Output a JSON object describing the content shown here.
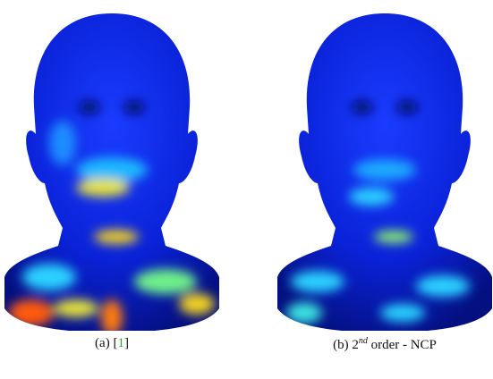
{
  "figure": {
    "panels": [
      {
        "caption_parts": [
          "(a) [",
          "1",
          "]"
        ]
      },
      {
        "caption_parts": [
          "(b) 2",
          "nd",
          " order - NCP"
        ]
      }
    ]
  }
}
